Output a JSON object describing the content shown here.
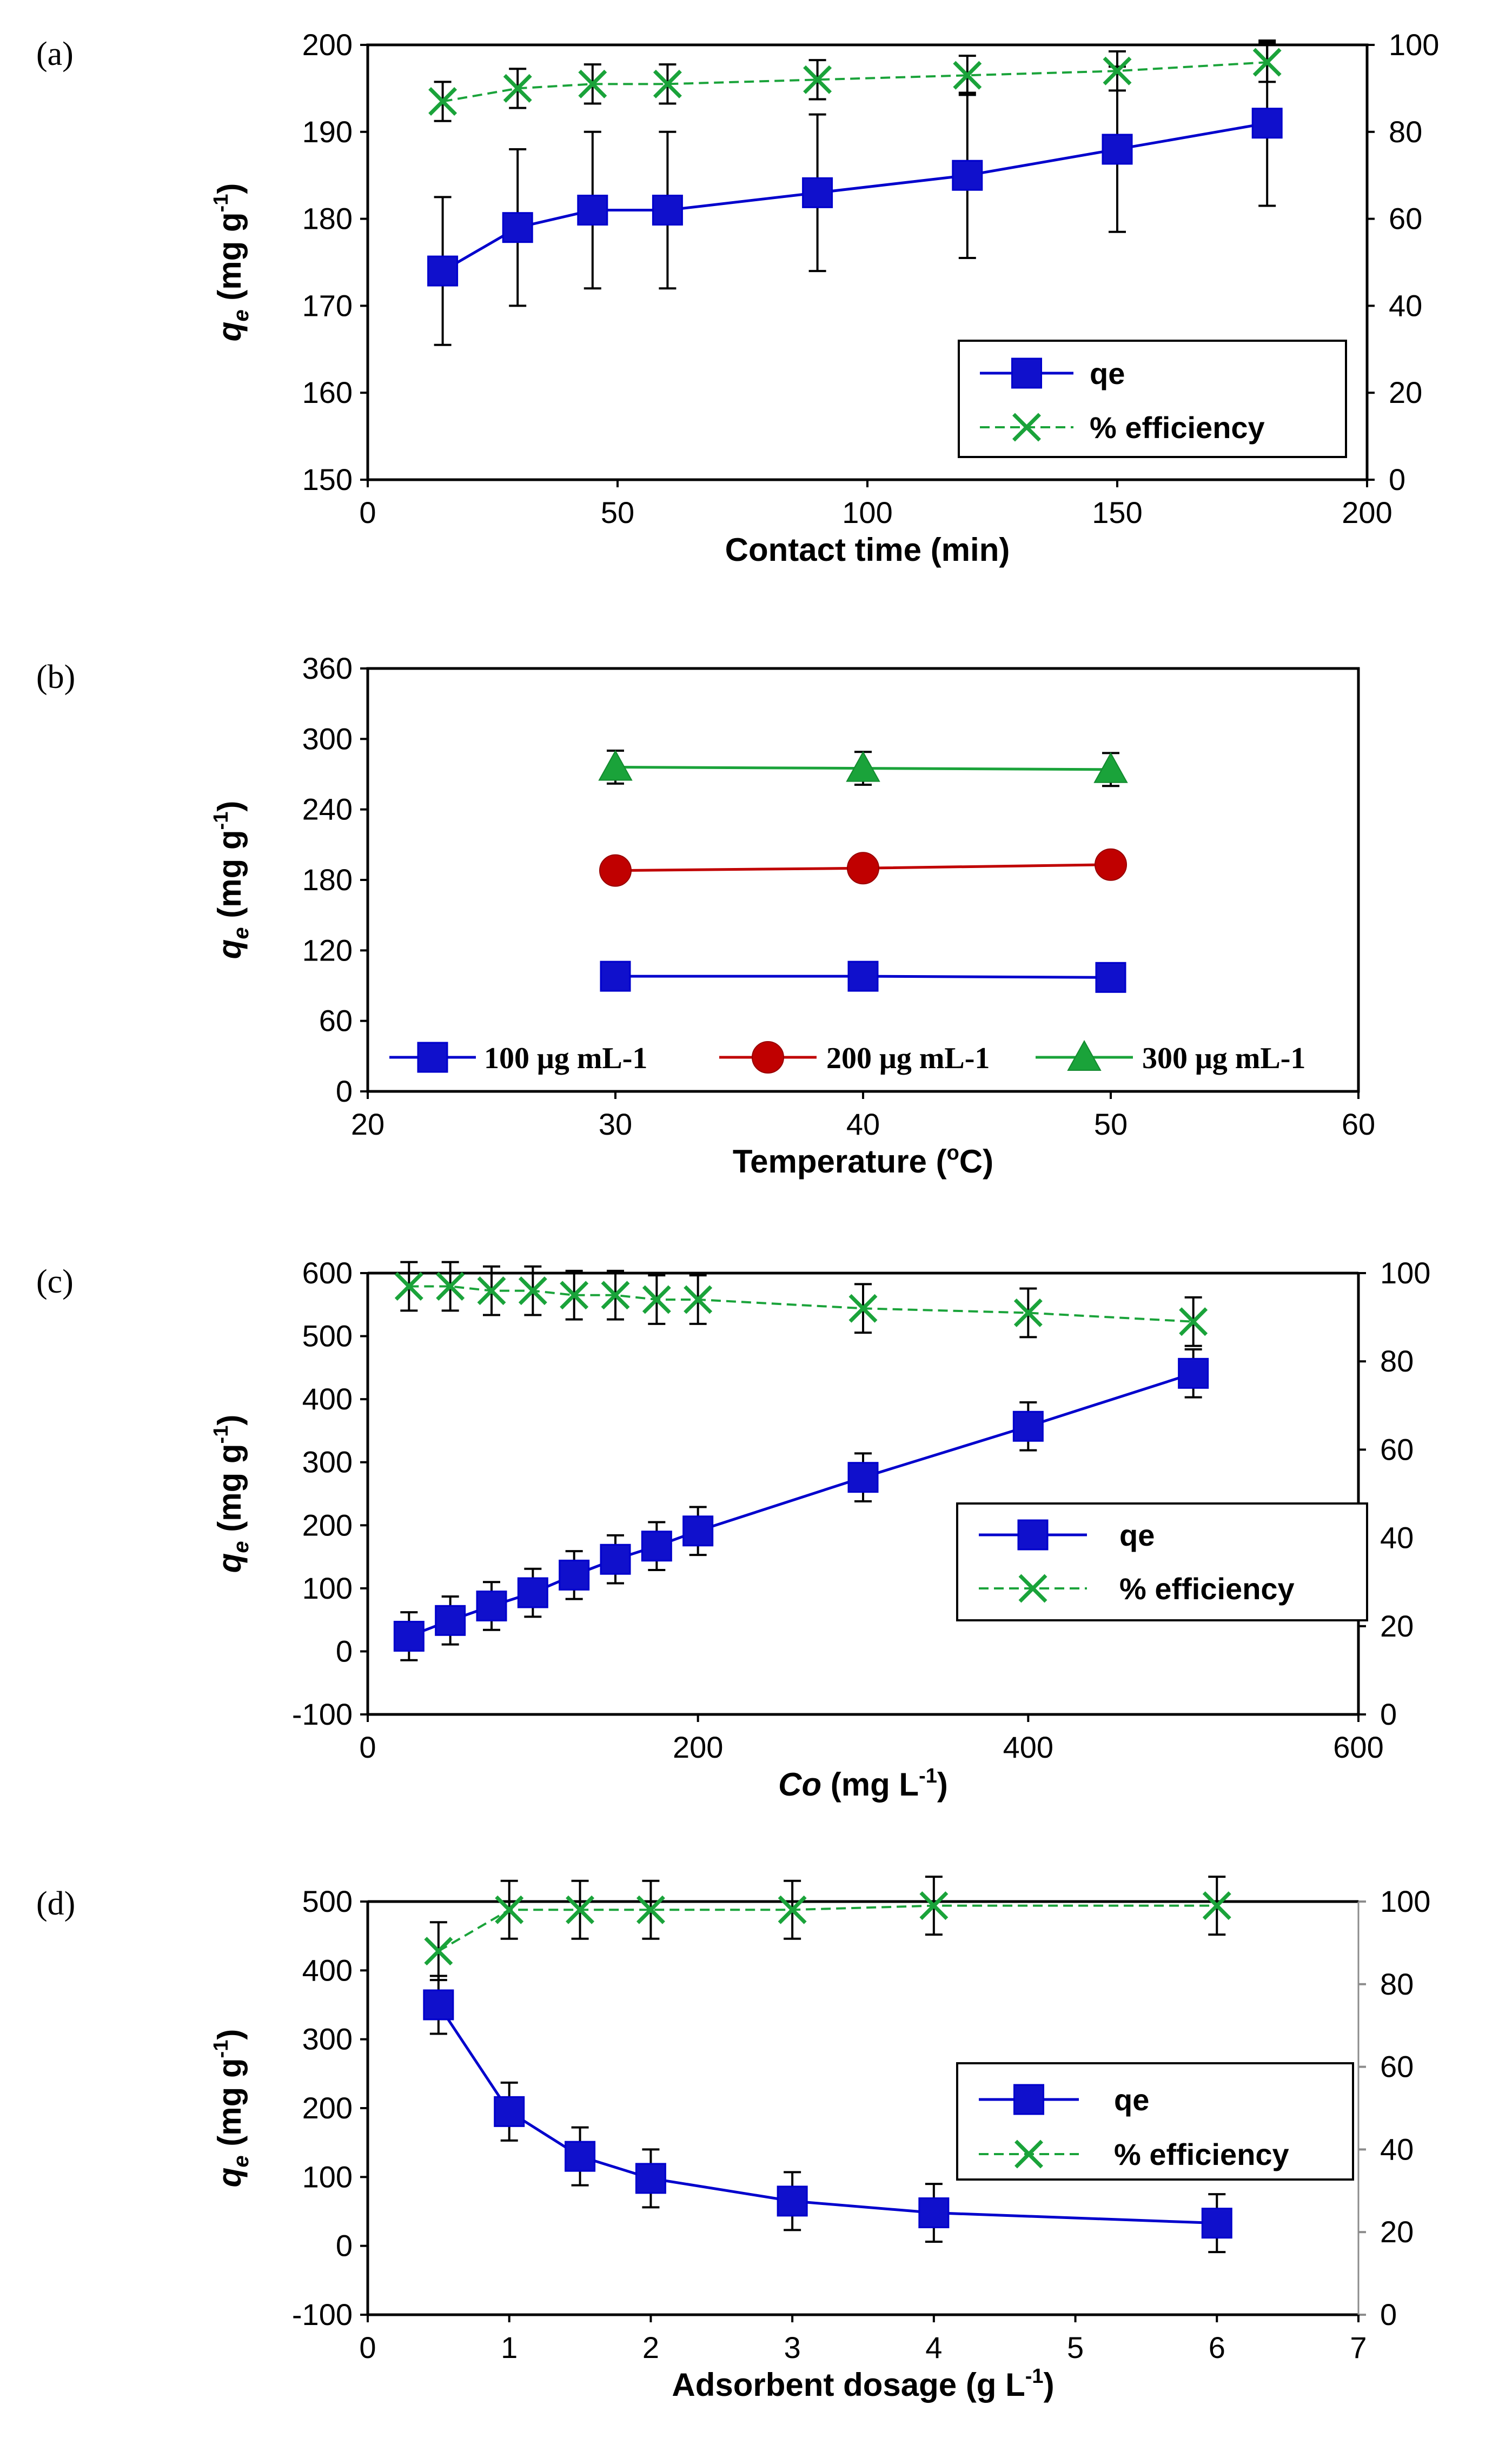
{
  "colors": {
    "qe": "#0000CC",
    "qe_fill": "#1010CC",
    "eff": "#1AA33A",
    "red": "#C00000",
    "green": "#1AA33A",
    "axis": "#000000",
    "gray": "#8C8C8C"
  },
  "chart_data": [
    {
      "type": "line",
      "panel_label": "(a)",
      "xlabel": "Contact time (min)",
      "ylabel_main": "q",
      "ylabel_sub": "e",
      "ylabel_unit": " (mg g",
      "ylabel_sup": "-1",
      "ylabel_close": ")",
      "xlim": [
        0,
        200
      ],
      "xticks": [
        0,
        50,
        100,
        150,
        200
      ],
      "ylim": [
        150,
        200
      ],
      "yticks": [
        150,
        160,
        170,
        180,
        190,
        200
      ],
      "y2lim": [
        0,
        100
      ],
      "y2ticks": [
        0,
        20,
        40,
        60,
        80,
        100
      ],
      "legend_position": "lower-right",
      "series": [
        {
          "name": "qe",
          "axis": "left",
          "marker": "square",
          "style": "solid",
          "x": [
            15,
            30,
            45,
            60,
            90,
            120,
            150,
            180
          ],
          "y": [
            174,
            179,
            181,
            181,
            183,
            185,
            188,
            191
          ],
          "err": [
            8.5,
            9,
            9,
            9,
            9,
            9.5,
            9.5,
            9.5
          ]
        },
        {
          "name": "% efficiency",
          "axis": "right",
          "marker": "x",
          "style": "dashed",
          "x": [
            15,
            30,
            45,
            60,
            90,
            120,
            150,
            180
          ],
          "y": [
            87,
            90,
            91,
            91,
            92,
            93,
            94,
            96
          ],
          "err": [
            4.5,
            4.5,
            4.5,
            4.5,
            4.5,
            4.5,
            4.5,
            4.5
          ]
        }
      ]
    },
    {
      "type": "line",
      "panel_label": "(b)",
      "xlabel": "Temperature (",
      "xlabel_sup": "o",
      "xlabel_close": "C)",
      "ylabel_main": "q",
      "ylabel_sub": "e",
      "ylabel_unit": " (mg g",
      "ylabel_sup": "-1",
      "ylabel_close": ")",
      "xlim": [
        20,
        60
      ],
      "xticks": [
        20,
        30,
        40,
        50,
        60
      ],
      "ylim": [
        0,
        360
      ],
      "yticks": [
        0,
        60,
        120,
        180,
        240,
        300,
        360
      ],
      "legend_position": "bottom",
      "series": [
        {
          "name": "100 μg mL-1",
          "axis": "left",
          "marker": "square",
          "x": [
            30,
            40,
            50
          ],
          "y": [
            98,
            98,
            97
          ],
          "err": [
            0,
            0,
            0
          ]
        },
        {
          "name": "200 μg mL-1",
          "axis": "left",
          "marker": "circle",
          "x": [
            30,
            40,
            50
          ],
          "y": [
            188,
            190,
            193
          ],
          "err": [
            0,
            0,
            0
          ]
        },
        {
          "name": "300 μg mL-1",
          "axis": "left",
          "marker": "triangle",
          "x": [
            30,
            40,
            50
          ],
          "y": [
            276,
            275,
            274
          ],
          "err": [
            14,
            14,
            14
          ]
        }
      ]
    },
    {
      "type": "line",
      "panel_label": "(c)",
      "xlabel": "Co",
      "xlabel_unit": " (mg L",
      "xlabel_sup": "-1",
      "xlabel_close": ")",
      "ylabel_main": "q",
      "ylabel_sub": "e",
      "ylabel_unit": " (mg g",
      "ylabel_sup": "-1",
      "ylabel_close": ")",
      "xlim": [
        0,
        600
      ],
      "xticks": [
        0,
        200,
        400,
        600
      ],
      "ylim": [
        -100,
        600
      ],
      "yticks": [
        -100,
        0,
        100,
        200,
        300,
        400,
        500,
        600
      ],
      "y2lim": [
        0,
        100
      ],
      "y2ticks": [
        0,
        20,
        40,
        60,
        80,
        100
      ],
      "legend_position": "right",
      "series": [
        {
          "name": "qe",
          "axis": "left",
          "marker": "square",
          "style": "solid",
          "x": [
            25,
            50,
            75,
            100,
            125,
            150,
            175,
            200,
            300,
            400,
            500
          ],
          "y": [
            24,
            49,
            72,
            93,
            121,
            146,
            167,
            191,
            276,
            357,
            441
          ],
          "err": [
            38,
            38,
            38,
            38,
            38,
            38,
            38,
            38,
            38,
            38,
            38
          ]
        },
        {
          "name": "% efficiency",
          "axis": "right",
          "marker": "x",
          "style": "dashed",
          "x": [
            25,
            50,
            75,
            100,
            125,
            150,
            175,
            200,
            300,
            400,
            500
          ],
          "y": [
            97,
            97,
            96,
            96,
            95,
            95,
            94,
            94,
            92,
            91,
            89
          ],
          "err": [
            5.5,
            5.5,
            5.5,
            5.5,
            5.5,
            5.5,
            5.5,
            5.5,
            5.5,
            5.5,
            5.5
          ]
        }
      ]
    },
    {
      "type": "line",
      "panel_label": "(d)",
      "xlabel": "Adsorbent dosage (g L",
      "xlabel_sup": "-1",
      "xlabel_close": ")",
      "ylabel_main": "q",
      "ylabel_sub": "e",
      "ylabel_unit": " (mg g",
      "ylabel_sup": "-1",
      "ylabel_close": ")",
      "xlim": [
        0,
        7
      ],
      "xticks": [
        0,
        1,
        2,
        3,
        4,
        5,
        6,
        7
      ],
      "ylim": [
        -100,
        500
      ],
      "yticks": [
        -100,
        0,
        100,
        200,
        300,
        400,
        500
      ],
      "y2lim": [
        0,
        100
      ],
      "y2ticks": [
        0,
        20,
        40,
        60,
        80,
        100
      ],
      "legend_position": "right",
      "series": [
        {
          "name": "qe",
          "axis": "left",
          "marker": "square",
          "style": "solid",
          "x": [
            0.5,
            1,
            1.5,
            2,
            3,
            4,
            6
          ],
          "y": [
            350,
            195,
            130,
            98,
            65,
            48,
            33
          ],
          "err": [
            42,
            42,
            42,
            42,
            42,
            42,
            42
          ]
        },
        {
          "name": "% efficiency",
          "axis": "right",
          "marker": "x",
          "style": "dashed",
          "x": [
            0.5,
            1,
            1.5,
            2,
            3,
            4,
            6
          ],
          "y": [
            88,
            98,
            98,
            98,
            98,
            99,
            99
          ],
          "err": [
            7,
            7,
            7,
            7,
            7,
            7,
            7
          ]
        }
      ]
    }
  ]
}
